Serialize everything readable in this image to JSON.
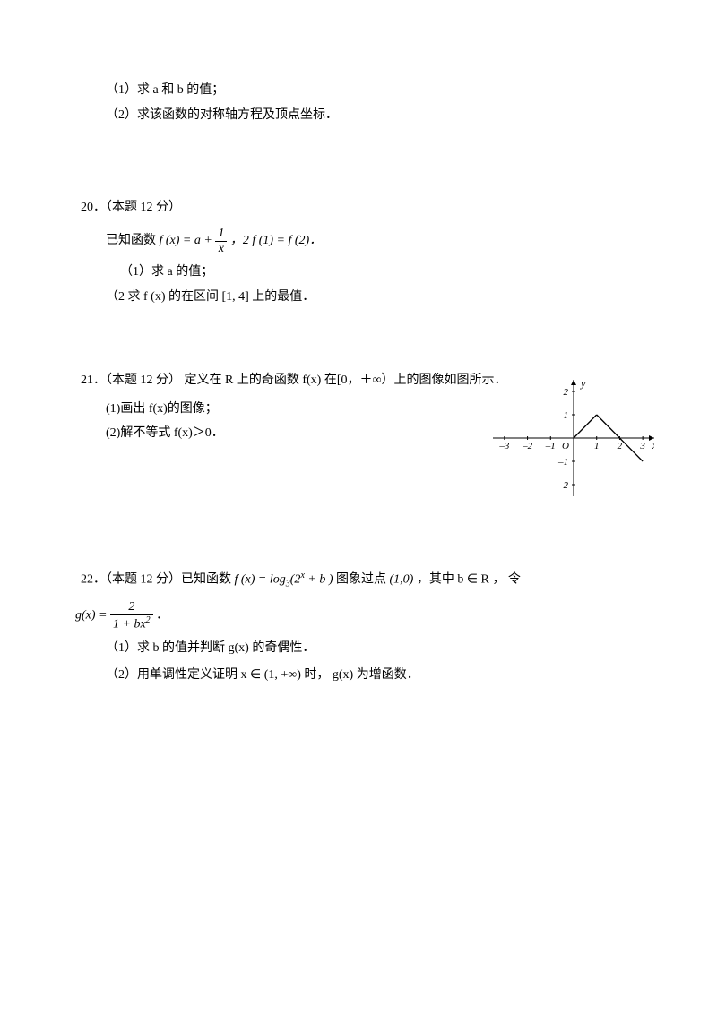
{
  "q19": {
    "part1": "（1）求 a 和 b 的值；",
    "part2": "（2）求该函数的对称轴方程及顶点坐标．"
  },
  "q20": {
    "header": "20．（本题 12 分）",
    "given_prefix": "已知函数 ",
    "fx_eq": "f (x) = a + ",
    "frac_num": "1",
    "frac_den": "x",
    "given_suffix": "，2 f (1) = f (2)．",
    "part1": "（1）求 a 的值；",
    "part2": "（2 求 f (x) 的在区间 [1, 4] 上的最值．"
  },
  "q21": {
    "header": "21．（本题 12 分）   定义在 R 上的奇函数 f(x) 在[0，＋∞）上的图像如图所示．",
    "part1": "(1)画出 f(x)的图像；",
    "part2": "(2)解不等式 f(x)＞0．",
    "graph": {
      "xlabel": "x",
      "ylabel": "y",
      "xlim": [
        -3.5,
        3.5
      ],
      "ylim": [
        -2.5,
        2.5
      ],
      "xticks": [
        -3,
        -2,
        -1,
        1,
        2,
        3
      ],
      "yticks": [
        -2,
        -1,
        1,
        2
      ],
      "origin": "O",
      "segments": [
        {
          "from": [
            0,
            0
          ],
          "to": [
            1,
            1
          ]
        },
        {
          "from": [
            1,
            1
          ],
          "to": [
            3,
            -1
          ]
        }
      ],
      "color": "#000000",
      "line_width": 1
    }
  },
  "q22": {
    "header_prefix": "22．（本题 12 分）已知函数 ",
    "fx": "f (x) = log",
    "log_base": "3",
    "log_arg": "(2",
    "log_exp": "x",
    "log_arg_end": " + b )",
    "header_mid": " 图象过点",
    "point": "(1,0)",
    "header_suffix": "，其中 b ∈ R ， 令",
    "gx_lhs": "g(x) = ",
    "gx_num": "2",
    "gx_den_prefix": "1 + bx",
    "gx_den_exp": "2",
    "period": "．",
    "part1": "（1）求 b 的值并判断 g(x) 的奇偶性．",
    "part2": "（2）用单调性定义证明 x ∈ (1, +∞) 时， g(x) 为增函数．"
  }
}
